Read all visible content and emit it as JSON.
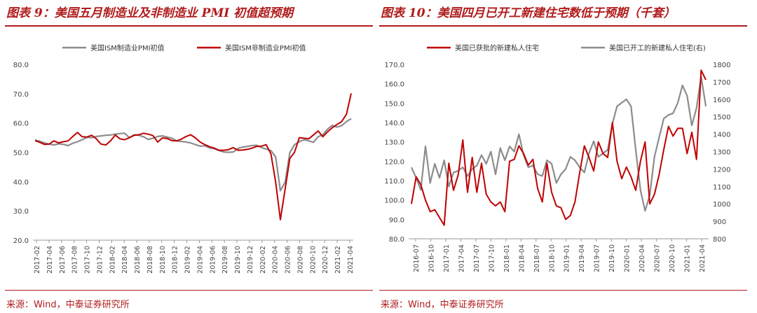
{
  "left_panel": {
    "title": "图表 9：美国五月制造业及非制造业 PMI 初值超预期",
    "source": "来源：Wind，中泰证券研究所"
  },
  "right_panel": {
    "title": "图表 10：美国四月已开工新建住宅数低于预期（千套）",
    "source": "来源：Wind，中泰证券研究所"
  },
  "colors": {
    "accent": "#b01c1c",
    "gray_series": "#8c8c8c",
    "red_series": "#c00000"
  },
  "chart_data": [
    {
      "type": "line",
      "title": "美国五月制造业及非制造业 PMI 初值超预期",
      "ylim": [
        20,
        80
      ],
      "yticks": [
        "20.0",
        "30.0",
        "40.0",
        "50.0",
        "60.0",
        "70.0",
        "80.0"
      ],
      "xlabels": [
        "2017-02",
        "2017-04",
        "2017-06",
        "2017-08",
        "2017-10",
        "2017-12",
        "2018-02",
        "2018-04",
        "2018-06",
        "2018-08",
        "2018-10",
        "2018-12",
        "2019-02",
        "2019-04",
        "2019-06",
        "2019-08",
        "2019-10",
        "2019-12",
        "2020-02",
        "2020-04",
        "2020-06",
        "2020-08",
        "2020-10",
        "2020-12",
        "2021-02",
        "2021-04"
      ],
      "series": [
        {
          "name": "美国ISM制造业PMI初值",
          "color": "#8c8c8c",
          "values": [
            54.2,
            53.8,
            53.2,
            52.8,
            52.5,
            52.9,
            52.7,
            52.3,
            53.1,
            53.6,
            54.3,
            55.1,
            55.0,
            55.4,
            55.6,
            55.8,
            55.9,
            56.2,
            56.4,
            56.5,
            55.0,
            56.0,
            55.8,
            55.3,
            54.4,
            54.8,
            55.4,
            55.6,
            55.2,
            54.8,
            53.9,
            53.7,
            53.5,
            53.2,
            52.6,
            52.1,
            52.2,
            51.5,
            51.2,
            50.6,
            50.1,
            50.0,
            50.1,
            51.3,
            51.8,
            52.0,
            52.3,
            52.4,
            51.6,
            51.1,
            50.6,
            48.4,
            36.9,
            39.8,
            49.9,
            52.6,
            53.6,
            54.3,
            53.9,
            53.4,
            55.3,
            56.0,
            57.9,
            59.2,
            58.6,
            59.1,
            60.5,
            61.5
          ]
        },
        {
          "name": "美国ISM非制造业PMI初值",
          "color": "#c00000",
          "values": [
            54.0,
            53.4,
            52.7,
            52.8,
            53.9,
            53.2,
            53.6,
            53.9,
            55.4,
            56.8,
            55.3,
            55.2,
            55.8,
            54.6,
            52.8,
            52.5,
            53.9,
            55.9,
            54.6,
            54.3,
            55.0,
            55.8,
            56.0,
            56.5,
            56.2,
            55.7,
            53.5,
            54.9,
            54.7,
            54.0,
            53.9,
            54.5,
            55.4,
            56.0,
            54.9,
            53.5,
            52.6,
            51.9,
            51.4,
            50.7,
            50.7,
            50.9,
            51.6,
            50.7,
            50.8,
            51.0,
            51.4,
            52.0,
            52.1,
            52.6,
            49.4,
            39.8,
            27.0,
            37.5,
            47.9,
            50.0,
            55.0,
            54.8,
            54.6,
            55.9,
            57.3,
            55.3,
            57.0,
            58.4,
            59.5,
            60.5,
            63.0,
            70.1
          ]
        }
      ]
    },
    {
      "type": "line",
      "title": "美国四月已开工新建住宅数低于预期（千套）",
      "ylim_left": [
        80,
        170
      ],
      "ylim_right": [
        800,
        1800
      ],
      "yticks_left": [
        "80.0",
        "90.0",
        "100.0",
        "110.0",
        "120.0",
        "130.0",
        "140.0",
        "150.0",
        "160.0",
        "170.0"
      ],
      "yticks_right": [
        "800",
        "900",
        "1000",
        "1100",
        "1200",
        "1300",
        "1400",
        "1500",
        "1600",
        "1700",
        "1800"
      ],
      "xlabels": [
        "2016-07",
        "2016-10",
        "2017-01",
        "2017-04",
        "2017-07",
        "2017-10",
        "2018-01",
        "2018-04",
        "2018-07",
        "2018-10",
        "2019-01",
        "2019-04",
        "2019-07",
        "2019-10",
        "2020-01",
        "2020-04",
        "2020-07",
        "2020-10",
        "2021-01",
        "2021-04"
      ],
      "series": [
        {
          "name": "美国已获批的新建私人住宅",
          "axis": "left",
          "color": "#c00000",
          "values": [
            98,
            112,
            108,
            100,
            94,
            95,
            91,
            87,
            119,
            105,
            113,
            131,
            104,
            122,
            104,
            119,
            103,
            99,
            97,
            99,
            94,
            120,
            121,
            128,
            124,
            118,
            121,
            106,
            99,
            119,
            104,
            97,
            96,
            90,
            92,
            99,
            114,
            128,
            122,
            115,
            130,
            124,
            122,
            140,
            120,
            111,
            117,
            112,
            105,
            120,
            130,
            98,
            103,
            113,
            126,
            138,
            133,
            137,
            137,
            124,
            135,
            121,
            167,
            162
          ]
        },
        {
          "name": "美国已开工的新建私人住宅(右)",
          "axis": "right",
          "color": "#8c8c8c",
          "values": [
            1210,
            1150,
            1080,
            1330,
            1120,
            1230,
            1150,
            1250,
            1100,
            1180,
            1190,
            1210,
            1160,
            1200,
            1220,
            1280,
            1230,
            1300,
            1170,
            1320,
            1250,
            1330,
            1300,
            1400,
            1280,
            1210,
            1220,
            1170,
            1160,
            1250,
            1230,
            1120,
            1170,
            1200,
            1270,
            1250,
            1210,
            1180,
            1290,
            1360,
            1270,
            1290,
            1310,
            1460,
            1560,
            1580,
            1600,
            1560,
            1310,
            1080,
            960,
            1050,
            1270,
            1380,
            1490,
            1510,
            1520,
            1580,
            1680,
            1620,
            1450,
            1550,
            1730,
            1560
          ]
        }
      ]
    }
  ]
}
